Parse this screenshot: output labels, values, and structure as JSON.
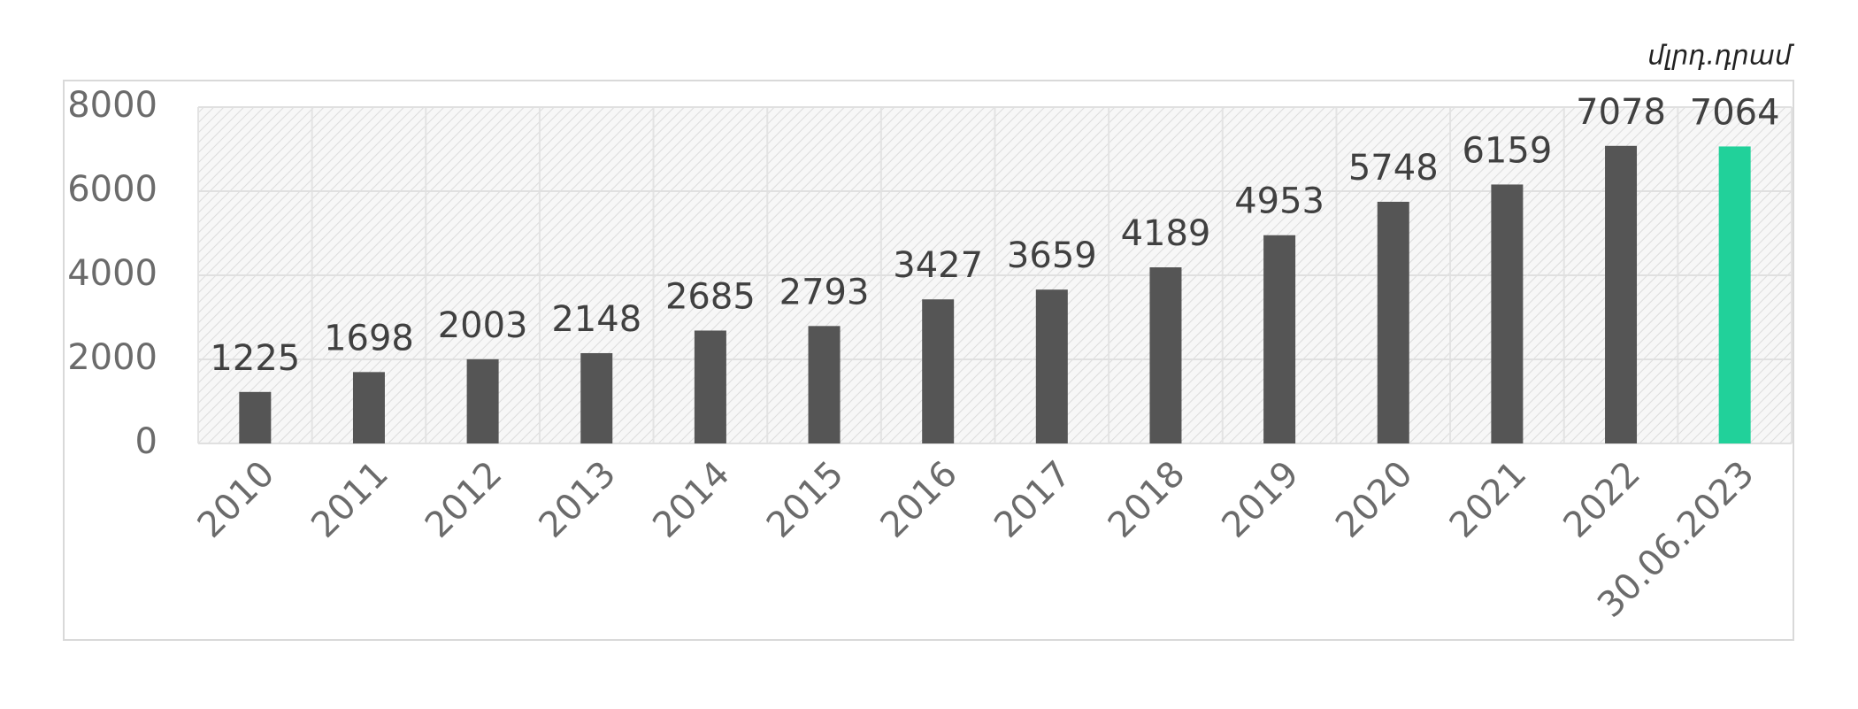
{
  "chart_data": {
    "type": "bar",
    "unit_label": "մլրդ.դրամ",
    "categories": [
      "2010",
      "2011",
      "2012",
      "2013",
      "2014",
      "2015",
      "2016",
      "2017",
      "2018",
      "2019",
      "2020",
      "2021",
      "2022",
      "30.06.2023"
    ],
    "values": [
      1225,
      1698,
      2003,
      2148,
      2685,
      2793,
      3427,
      3659,
      4189,
      4953,
      5748,
      6159,
      7078,
      7064
    ],
    "colors": [
      "#555555",
      "#555555",
      "#555555",
      "#555555",
      "#555555",
      "#555555",
      "#555555",
      "#555555",
      "#555555",
      "#555555",
      "#555555",
      "#555555",
      "#555555",
      "#21d19a"
    ],
    "ylim": [
      0,
      8000
    ],
    "yticks": [
      0,
      2000,
      4000,
      6000,
      8000
    ],
    "grid": true
  }
}
